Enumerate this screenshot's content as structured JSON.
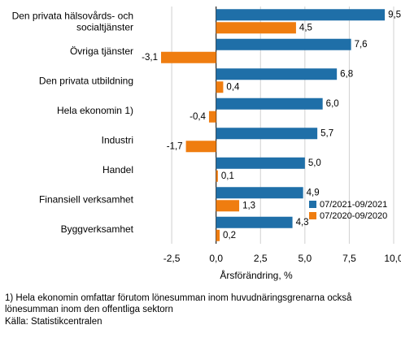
{
  "chart_data": {
    "type": "bar",
    "orientation": "horizontal",
    "categories": [
      [
        "Den privata hälsovårds- och",
        "socialtjänster"
      ],
      [
        "Övriga tjänster"
      ],
      [
        "Den privata utbildning"
      ],
      [
        "Hela ekonomin 1)"
      ],
      [
        "Industri"
      ],
      [
        "Handel"
      ],
      [
        "Finansiell verksamhet"
      ],
      [
        "Byggverksamhet"
      ]
    ],
    "series": [
      {
        "name": "07/2021-09/2021",
        "color": "#1f6fa8",
        "values": [
          9.5,
          7.6,
          6.8,
          6.0,
          5.7,
          5.0,
          4.9,
          4.3
        ],
        "labels": [
          "9,5",
          "7,6",
          "6,8",
          "6,0",
          "5,7",
          "5,0",
          "4,9",
          "4,3"
        ]
      },
      {
        "name": "07/2020-09/2020",
        "color": "#ef7d10",
        "values": [
          4.5,
          -3.1,
          0.4,
          -0.4,
          -1.7,
          0.1,
          1.3,
          0.2
        ],
        "labels": [
          "4,5",
          "-3,1",
          "0,4",
          "-0,4",
          "-1,7",
          "0,1",
          "1,3",
          "0,2"
        ]
      }
    ],
    "xlim": [
      -4.2,
      10.0
    ],
    "xticks": [
      -2.5,
      0.0,
      2.5,
      5.0,
      7.5,
      10.0
    ],
    "xtick_labels": [
      "-2,5",
      "0,0",
      "2,5",
      "5,0",
      "7,5",
      "10,0"
    ],
    "xlabel": "Årsförändring, %",
    "ylabel": "",
    "title": "",
    "grid": "vertical",
    "legend_position": "bottom-right"
  },
  "footnote": "1) Hela ekonomin omfattar förutom lönesumman inom huvudnäringsgrenarna också lönesumman inom den offentliga sektorn",
  "source": "Källa: Statistikcentralen"
}
